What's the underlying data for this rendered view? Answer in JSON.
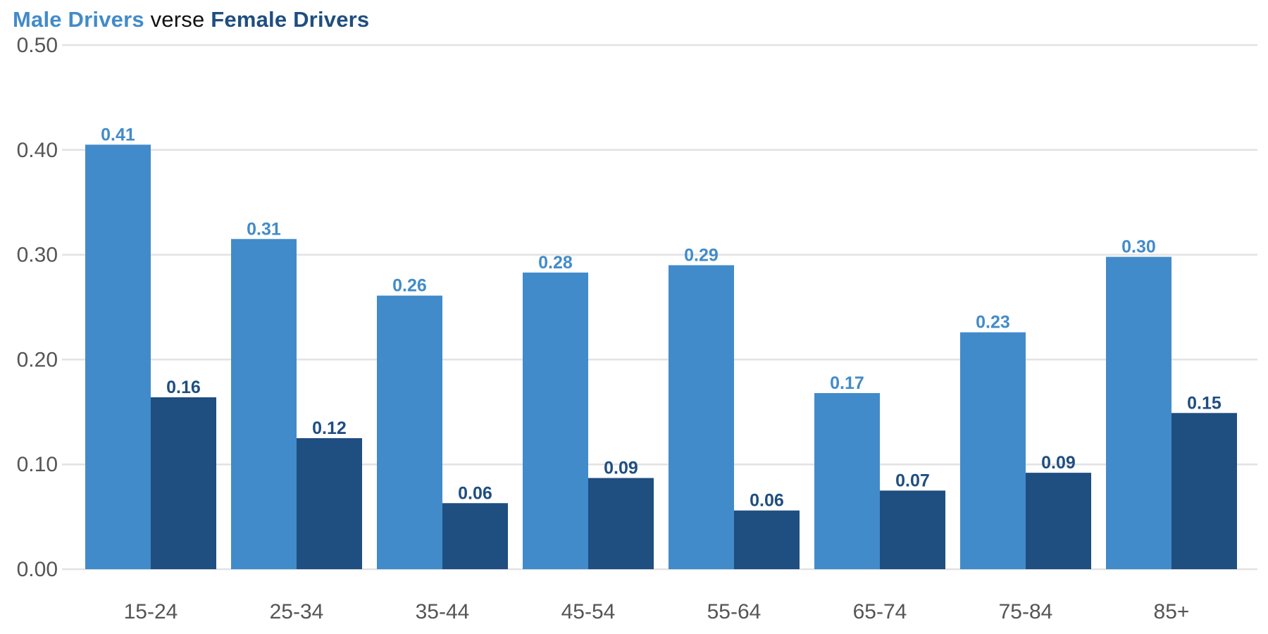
{
  "chart_data": {
    "type": "bar",
    "title_parts": {
      "male": "Male Drivers",
      "joiner": "verse",
      "female": "Female Drivers"
    },
    "categories": [
      "15-24",
      "25-34",
      "35-44",
      "45-54",
      "55-64",
      "65-74",
      "75-84",
      "85+"
    ],
    "series": [
      {
        "name": "Male Drivers",
        "color": "#428bca",
        "values": [
          0.405,
          0.315,
          0.261,
          0.283,
          0.29,
          0.168,
          0.226,
          0.298
        ],
        "labels": [
          "0.41",
          "0.31",
          "0.26",
          "0.28",
          "0.29",
          "0.17",
          "0.23",
          "0.30"
        ]
      },
      {
        "name": "Female Drivers",
        "color": "#1f4e80",
        "values": [
          0.164,
          0.125,
          0.063,
          0.087,
          0.056,
          0.075,
          0.092,
          0.149
        ],
        "labels": [
          "0.16",
          "0.12",
          "0.06",
          "0.09",
          "0.06",
          "0.07",
          "0.09",
          "0.15"
        ]
      }
    ],
    "yticks": [
      "0.00",
      "0.10",
      "0.20",
      "0.30",
      "0.40",
      "0.50"
    ],
    "ylim": [
      0,
      0.5
    ],
    "grid": true,
    "legend": "title"
  }
}
